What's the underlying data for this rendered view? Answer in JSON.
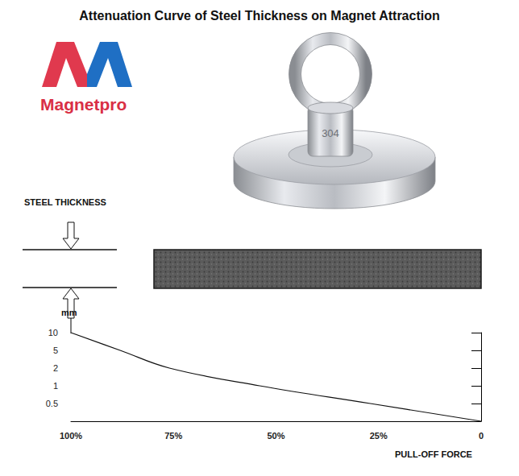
{
  "header": {
    "title": "Attenuation Curve of Steel Thickness on Magnet Attraction"
  },
  "logo": {
    "text": "Magnetpro"
  },
  "magnet": {
    "engraving": "304"
  },
  "diagram": {
    "label": "STEEL THICKNESS"
  },
  "chart_data": {
    "type": "line",
    "orientation": "horizontal",
    "categories": [
      null,
      "0.5",
      "1",
      "2",
      "5",
      "10"
    ],
    "values": [
      0,
      27,
      54,
      76,
      88,
      100
    ],
    "y_label": "mm",
    "x_label": "PULL-OFF FORCE",
    "xlim": [
      100,
      0
    ],
    "xticks": [
      {
        "value": 100,
        "label": "100%"
      },
      {
        "value": 75,
        "label": "75%"
      },
      {
        "value": 50,
        "label": "50%"
      },
      {
        "value": 25,
        "label": "25%"
      },
      0
    ],
    "color": "#111111",
    "grid": false
  }
}
